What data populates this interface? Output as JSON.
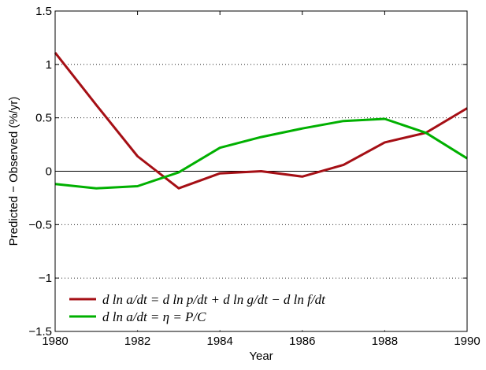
{
  "chart_data": {
    "type": "line",
    "title": "",
    "xlabel": "Year",
    "ylabel": "Predicted − Observed (%/yr)",
    "xlim": [
      1980,
      1990
    ],
    "ylim": [
      -1.5,
      1.5
    ],
    "x_ticks": [
      1980,
      1982,
      1984,
      1986,
      1988,
      1990
    ],
    "x_tick_labels": [
      "1980",
      "1982",
      "1984",
      "1986",
      "1988",
      "1990"
    ],
    "y_ticks": [
      -1.5,
      -1,
      -0.5,
      0,
      0.5,
      1,
      1.5
    ],
    "y_tick_labels": [
      "−1.5",
      "−1",
      "−0.5",
      "0",
      "0.5",
      "1",
      "1.5"
    ],
    "grid": "horizontal dotted",
    "zero_line": true,
    "legend_position": "bottom-left",
    "x": [
      1980,
      1981,
      1982,
      1983,
      1984,
      1985,
      1986,
      1987,
      1988,
      1989,
      1990
    ],
    "series": [
      {
        "name": "d ln a/dt = d ln p/dt + d ln g/dt − d ln f/dt",
        "color": "#a50f15",
        "values": [
          1.11,
          0.62,
          0.14,
          -0.16,
          -0.02,
          0.0,
          -0.05,
          0.06,
          0.27,
          0.36,
          0.59
        ]
      },
      {
        "name": "d ln a/dt = η = P/C",
        "color": "#00b000",
        "values": [
          -0.12,
          -0.16,
          -0.14,
          -0.01,
          0.22,
          0.32,
          0.4,
          0.47,
          0.49,
          0.36,
          0.12
        ]
      }
    ]
  }
}
